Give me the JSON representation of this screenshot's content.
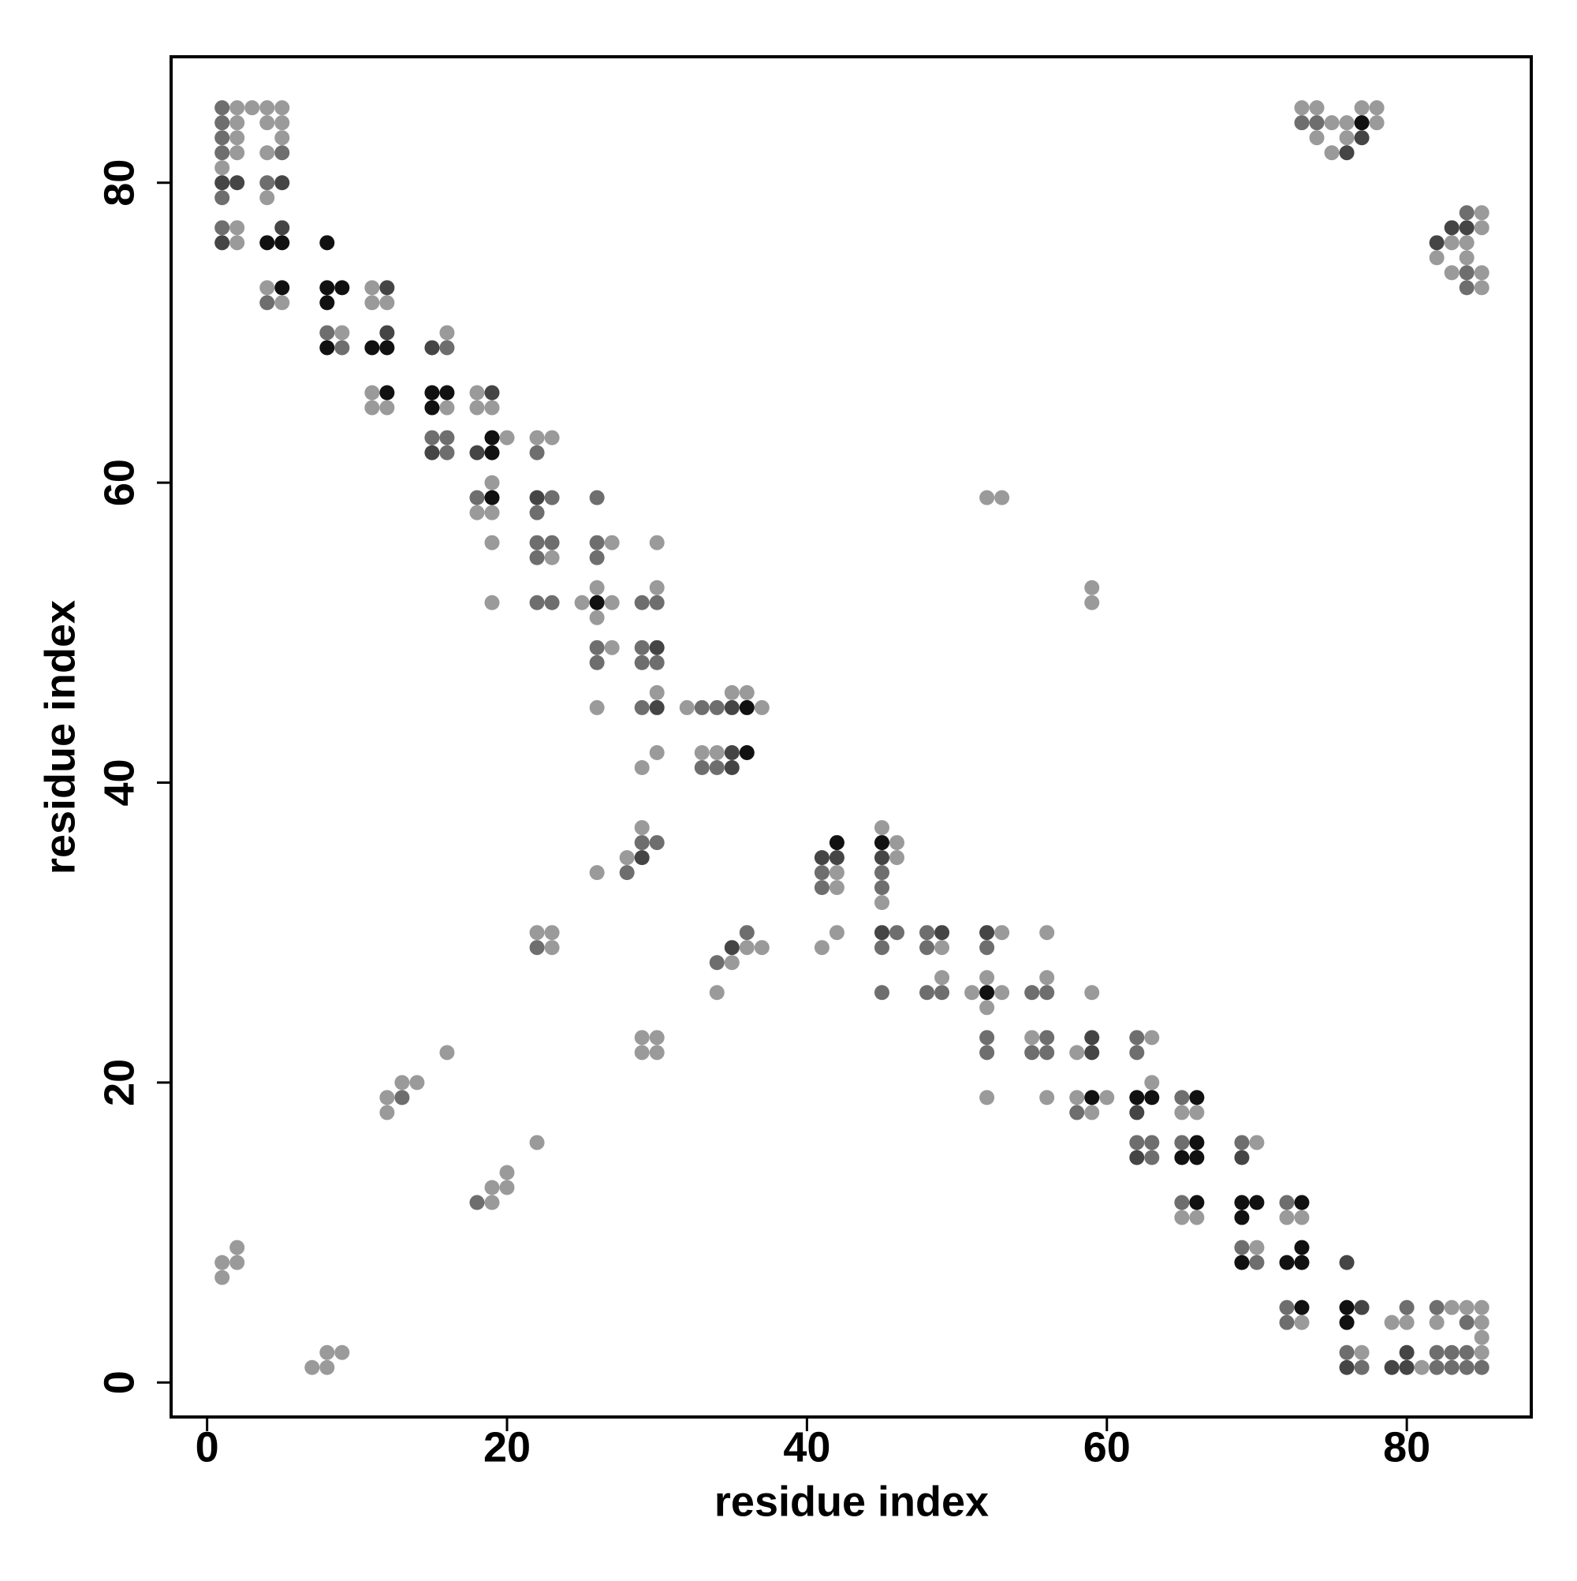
{
  "chart_data": {
    "type": "scatter",
    "xlabel": "residue index",
    "ylabel": "residue index",
    "xlim": [
      -2.4,
      88.3
    ],
    "ylim": [
      -2.3,
      88.4
    ],
    "xticks": [
      0,
      20,
      40,
      60,
      80
    ],
    "yticks": [
      0,
      20,
      40,
      60,
      80
    ],
    "series": [
      {
        "color": "#9a9a9a",
        "x": [
          1,
          2,
          2,
          2,
          2,
          2,
          2,
          3,
          4,
          4,
          4,
          4,
          4,
          5,
          5,
          5,
          5,
          9,
          11,
          11,
          11,
          11,
          12,
          12,
          16,
          16,
          18,
          18,
          18,
          19,
          19,
          19,
          19,
          19,
          20,
          22,
          23,
          23,
          25,
          26,
          26,
          26,
          26,
          27,
          27,
          27,
          28,
          29,
          29,
          29,
          29,
          30,
          30,
          30,
          30,
          30,
          30,
          32,
          33,
          34,
          34,
          35,
          35,
          36,
          36,
          37,
          37,
          41,
          42,
          42,
          42,
          45,
          45,
          46,
          46,
          49,
          49,
          51,
          52,
          52,
          52,
          52,
          53,
          53,
          53,
          55,
          56,
          56,
          56,
          58,
          58,
          59,
          59,
          59,
          59,
          60,
          63,
          63,
          65,
          65,
          66,
          66,
          70,
          70,
          72,
          73,
          73,
          77,
          79,
          80,
          81,
          82,
          83,
          84,
          85,
          85,
          85,
          85,
          1,
          1,
          2,
          2,
          7,
          8,
          8,
          9,
          12,
          12,
          13,
          14,
          16,
          19,
          19,
          20,
          20,
          22,
          22,
          23,
          23,
          73,
          74,
          75,
          74,
          75,
          76,
          76,
          77,
          78,
          78,
          82,
          83,
          83,
          84,
          84,
          85,
          85,
          85,
          85
        ],
        "y": [
          81,
          85,
          84,
          83,
          82,
          77,
          76,
          85,
          85,
          84,
          82,
          79,
          73,
          85,
          84,
          83,
          72,
          70,
          73,
          72,
          66,
          65,
          72,
          65,
          70,
          65,
          66,
          65,
          58,
          65,
          60,
          58,
          56,
          52,
          63,
          63,
          63,
          55,
          52,
          53,
          51,
          45,
          34,
          56,
          52,
          49,
          35,
          41,
          37,
          23,
          22,
          56,
          53,
          46,
          42,
          23,
          22,
          45,
          42,
          42,
          26,
          46,
          28,
          46,
          29,
          45,
          29,
          29,
          34,
          33,
          30,
          37,
          32,
          36,
          35,
          29,
          27,
          26,
          59,
          27,
          25,
          19,
          59,
          30,
          26,
          23,
          30,
          27,
          19,
          22,
          19,
          53,
          52,
          26,
          18,
          19,
          23,
          20,
          18,
          11,
          18,
          11,
          16,
          9,
          11,
          11,
          4,
          2,
          4,
          4,
          1,
          4,
          5,
          5,
          5,
          4,
          3,
          2,
          8,
          7,
          9,
          8,
          1,
          2,
          1,
          2,
          19,
          18,
          20,
          20,
          22,
          13,
          12,
          14,
          13,
          16,
          30,
          30,
          29,
          85,
          85,
          84,
          83,
          82,
          84,
          83,
          85,
          85,
          84,
          75,
          76,
          74,
          76,
          75,
          78,
          77,
          74,
          73
        ]
      },
      {
        "color": "#6e6e6e",
        "x": [
          1,
          1,
          1,
          1,
          1,
          1,
          4,
          4,
          5,
          8,
          9,
          15,
          16,
          16,
          16,
          18,
          22,
          22,
          22,
          22,
          22,
          23,
          23,
          23,
          26,
          26,
          26,
          26,
          26,
          28,
          29,
          29,
          29,
          29,
          29,
          30,
          30,
          30,
          33,
          33,
          34,
          34,
          34,
          36,
          41,
          41,
          45,
          45,
          45,
          45,
          46,
          48,
          48,
          48,
          49,
          52,
          52,
          52,
          55,
          55,
          56,
          56,
          56,
          58,
          62,
          62,
          62,
          63,
          63,
          65,
          65,
          65,
          69,
          69,
          70,
          72,
          72,
          72,
          76,
          77,
          80,
          82,
          82,
          82,
          83,
          83,
          84,
          84,
          84,
          85,
          13,
          18,
          22,
          73,
          74,
          84,
          84,
          84
        ],
        "y": [
          85,
          84,
          83,
          82,
          79,
          77,
          80,
          72,
          82,
          70,
          69,
          63,
          69,
          63,
          62,
          59,
          62,
          58,
          56,
          55,
          52,
          59,
          56,
          52,
          59,
          56,
          55,
          49,
          48,
          34,
          52,
          49,
          48,
          45,
          36,
          52,
          48,
          36,
          45,
          41,
          45,
          41,
          28,
          30,
          34,
          33,
          34,
          33,
          29,
          26,
          30,
          30,
          29,
          26,
          26,
          29,
          23,
          22,
          26,
          22,
          26,
          23,
          22,
          18,
          23,
          22,
          16,
          16,
          15,
          19,
          16,
          12,
          16,
          9,
          8,
          12,
          5,
          4,
          2,
          1,
          5,
          5,
          2,
          1,
          2,
          1,
          4,
          2,
          1,
          1,
          19,
          12,
          29,
          84,
          84,
          78,
          74,
          73
        ]
      },
      {
        "color": "#454545",
        "x": [
          1,
          1,
          2,
          5,
          5,
          12,
          12,
          15,
          15,
          18,
          19,
          22,
          29,
          30,
          30,
          35,
          35,
          35,
          35,
          41,
          42,
          45,
          45,
          49,
          52,
          59,
          59,
          62,
          62,
          69,
          76,
          76,
          77,
          79,
          80,
          80,
          76,
          77,
          82,
          83,
          84
        ],
        "y": [
          80,
          76,
          80,
          80,
          77,
          73,
          70,
          69,
          62,
          62,
          66,
          59,
          35,
          49,
          45,
          45,
          42,
          41,
          29,
          35,
          35,
          35,
          30,
          30,
          30,
          23,
          22,
          18,
          15,
          15,
          8,
          1,
          5,
          1,
          2,
          1,
          82,
          83,
          76,
          77,
          77
        ]
      },
      {
        "color": "#111111",
        "x": [
          4,
          5,
          5,
          8,
          8,
          8,
          8,
          9,
          11,
          12,
          12,
          15,
          15,
          16,
          19,
          19,
          19,
          26,
          36,
          36,
          42,
          45,
          52,
          59,
          62,
          63,
          65,
          66,
          66,
          66,
          66,
          69,
          69,
          69,
          70,
          72,
          73,
          73,
          73,
          73,
          76,
          76,
          77
        ],
        "y": [
          76,
          76,
          73,
          76,
          73,
          72,
          69,
          73,
          69,
          69,
          66,
          66,
          65,
          66,
          63,
          62,
          59,
          52,
          45,
          42,
          36,
          36,
          26,
          19,
          19,
          19,
          15,
          19,
          16,
          15,
          12,
          12,
          11,
          8,
          12,
          8,
          12,
          9,
          8,
          5,
          5,
          4,
          84
        ]
      }
    ]
  }
}
